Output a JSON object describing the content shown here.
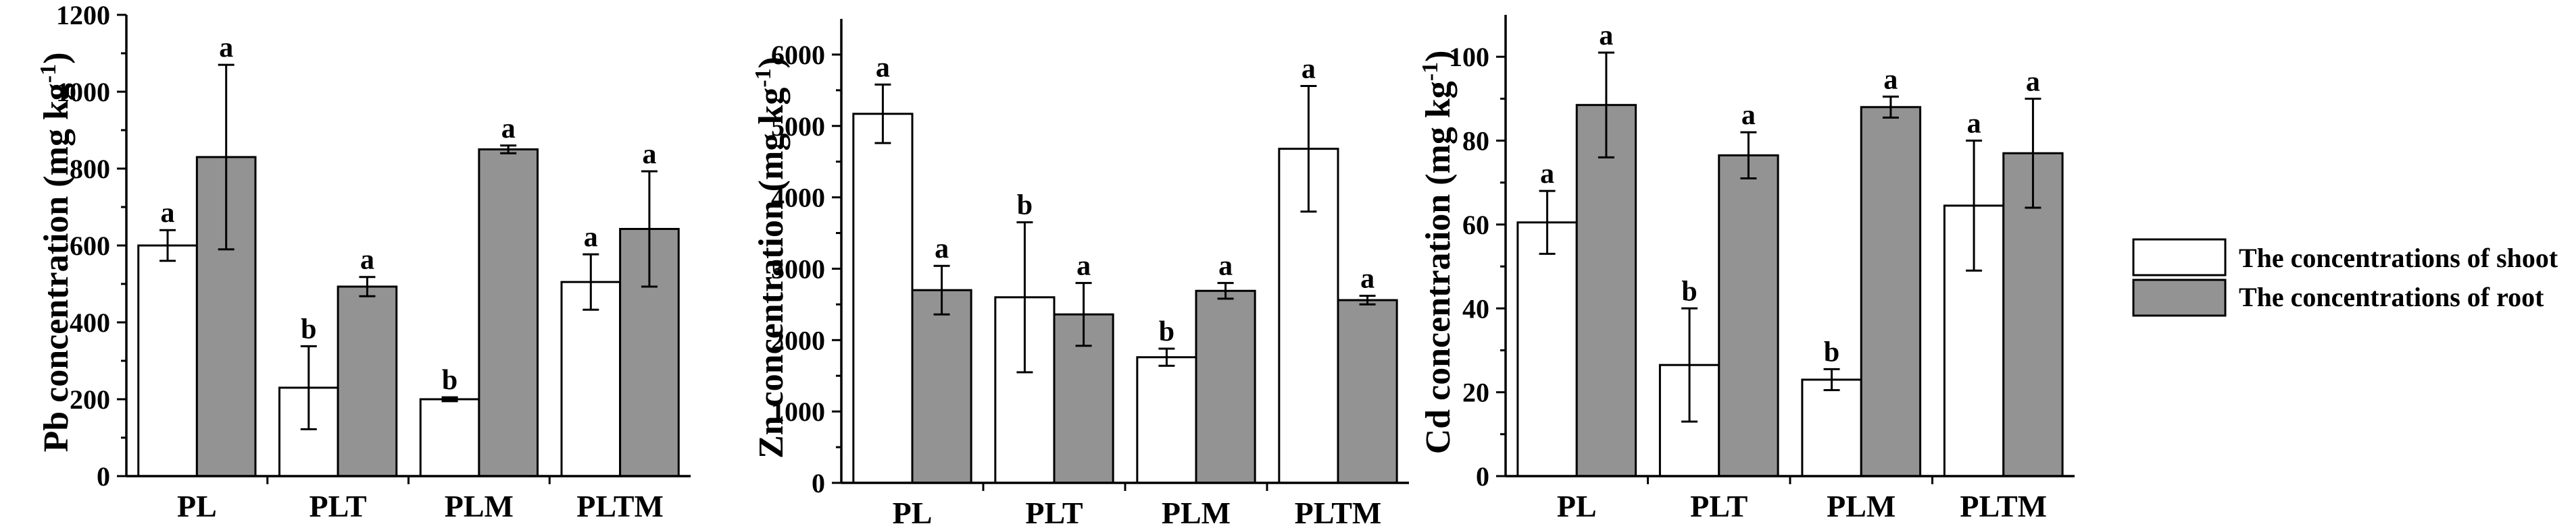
{
  "colors": {
    "shoot_fill": "#ffffff",
    "root_fill": "#939393",
    "stroke": "#000000"
  },
  "legend": {
    "shoot_label": "The concentrations of shoot",
    "root_label": "The concentrations of root"
  },
  "chart_data": [
    {
      "type": "bar",
      "id": "pb",
      "ylabel": "Pb concentration (mg kg-1)",
      "ylabel_main": "Pb concentration (mg kg",
      "ylabel_sup": "-1",
      "ylabel_close": ")",
      "ylim": [
        0,
        1200
      ],
      "yticks": [
        0,
        200,
        400,
        600,
        800,
        1000,
        1200
      ],
      "categories": [
        "PL",
        "PLT",
        "PLM",
        "PLTM"
      ],
      "series": [
        {
          "name": "The concentrations of shoot",
          "values": [
            600,
            230,
            200,
            505
          ],
          "errors": [
            40,
            108,
            5,
            72
          ],
          "letters": [
            "a",
            "b",
            "b",
            "a"
          ]
        },
        {
          "name": "The concentrations of root",
          "values": [
            830,
            493,
            850,
            643
          ],
          "errors": [
            240,
            25,
            10,
            150
          ],
          "letters": [
            "a",
            "a",
            "a",
            "a"
          ]
        }
      ]
    },
    {
      "type": "bar",
      "id": "zn",
      "ylabel": "Zn concentration (mg kg-1)",
      "ylabel_main": "Zn concentration (mg kg",
      "ylabel_sup": "-1",
      "ylabel_close": ")",
      "ylim": [
        0,
        6500
      ],
      "yticks": [
        0,
        1000,
        2000,
        3000,
        4000,
        5000,
        6000
      ],
      "categories": [
        "PL",
        "PLT",
        "PLM",
        "PLTM"
      ],
      "series": [
        {
          "name": "The concentrations of shoot",
          "values": [
            5170,
            2600,
            1760,
            4680
          ],
          "errors": [
            410,
            1050,
            120,
            880
          ],
          "letters": [
            "a",
            "b",
            "b",
            "a"
          ]
        },
        {
          "name": "The concentrations of root",
          "values": [
            2700,
            2360,
            2690,
            2560
          ],
          "errors": [
            340,
            440,
            110,
            60
          ],
          "letters": [
            "a",
            "a",
            "a",
            "a"
          ]
        }
      ]
    },
    {
      "type": "bar",
      "id": "cd",
      "ylabel": "Cd concentration (mg kg-1)",
      "ylabel_main": "Cd concentration (mg kg",
      "ylabel_sup": "-1",
      "ylabel_close": ")",
      "ylim": [
        0,
        110
      ],
      "yticks": [
        0,
        20,
        40,
        60,
        80,
        100
      ],
      "categories": [
        "PL",
        "PLT",
        "PLM",
        "PLTM"
      ],
      "series": [
        {
          "name": "The concentrations of shoot",
          "values": [
            60.5,
            26.5,
            23,
            64.5
          ],
          "errors": [
            7.5,
            13.5,
            2.5,
            15.5
          ],
          "letters": [
            "a",
            "b",
            "b",
            "a"
          ]
        },
        {
          "name": "The concentrations of root",
          "values": [
            88.5,
            76.5,
            88,
            77
          ],
          "errors": [
            12.5,
            5.5,
            2.5,
            13
          ],
          "letters": [
            "a",
            "a",
            "a",
            "a"
          ]
        }
      ]
    }
  ]
}
